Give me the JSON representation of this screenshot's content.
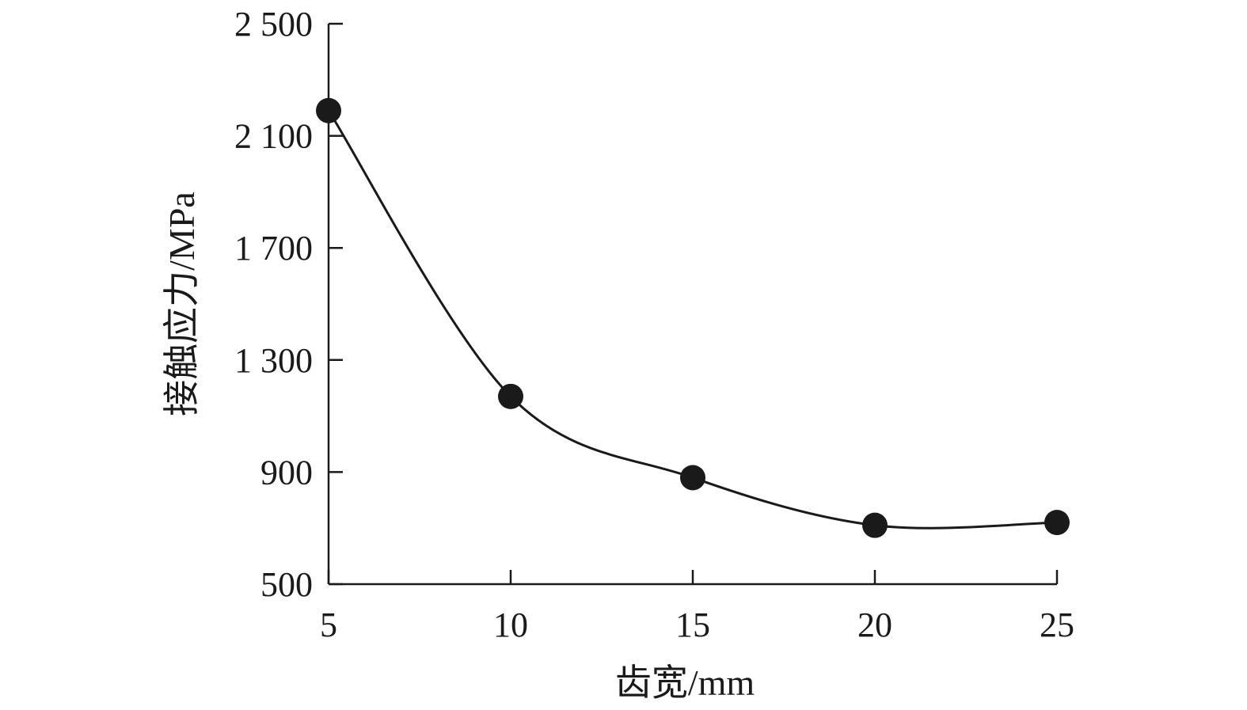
{
  "chart_data": {
    "type": "line",
    "title": "",
    "xlabel": "齿宽/mm",
    "ylabel": "接触应力/MPa",
    "x": [
      5,
      10,
      15,
      20,
      25
    ],
    "series": [
      {
        "values": [
          2190,
          1170,
          880,
          710,
          720
        ]
      }
    ],
    "xlim": [
      5,
      25
    ],
    "ylim": [
      500,
      2500
    ],
    "xticks": [
      5,
      10,
      15,
      20,
      25
    ],
    "xtick_labels": [
      "5",
      "10",
      "15",
      "20",
      "25"
    ],
    "yticks": [
      500,
      900,
      1300,
      1700,
      2100,
      2500
    ],
    "ytick_labels": [
      "500",
      "900",
      "1 300",
      "1 700",
      "2 100",
      "2 500"
    ],
    "grid": false,
    "legend": "none",
    "smooth": true,
    "colors": {
      "line": "#1a1a1a",
      "marker": "#1a1a1a",
      "axis": "#1a1a1a"
    }
  }
}
